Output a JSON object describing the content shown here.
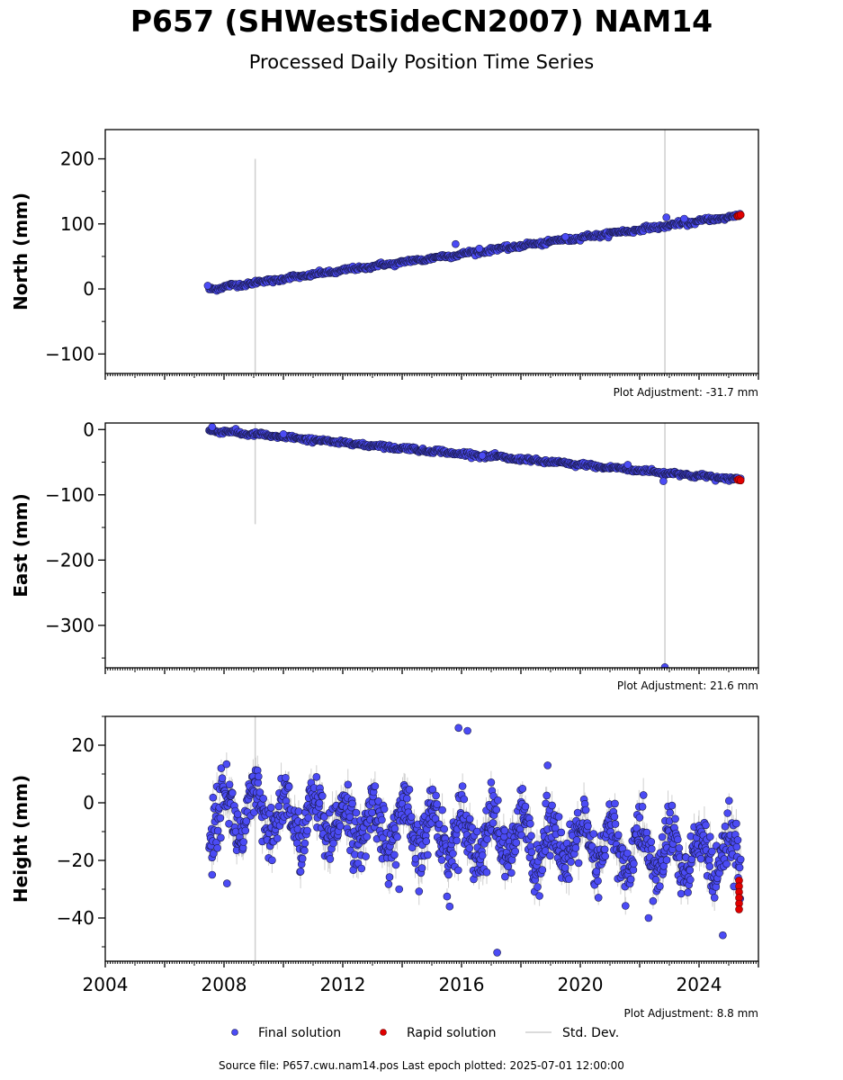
{
  "title": "P657 (SHWestSideCN2007) NAM14",
  "subtitle": "Processed Daily Position Time Series",
  "footer": "Source file: P657.cwu.nam14.pos  Last epoch plotted: 2025-07-01 12:00:00",
  "legend": {
    "final_label": "Final solution",
    "rapid_label": "Rapid solution",
    "std_label": "Std. Dev."
  },
  "colors": {
    "final": "#4b4bf5",
    "rapid": "#e00000",
    "std": "#b0b0b0",
    "edge": "#1a1a4a"
  },
  "chart_data": [
    {
      "type": "scatter",
      "ylabel": "North (mm)",
      "adjustment": "Plot Adjustment: -31.7 mm",
      "xlim": [
        2004,
        2026
      ],
      "ylim": [
        -130,
        245
      ],
      "yticks": [
        200,
        100,
        0,
        -100
      ],
      "ytick_labels": [
        "200",
        "100",
        "0",
        "−100"
      ],
      "trend": {
        "start": [
          2007.5,
          0
        ],
        "end": [
          2025.4,
          113
        ]
      },
      "scatter_sd": 1.6,
      "outliers": [
        [
          2007.45,
          5
        ],
        [
          2015.8,
          69
        ],
        [
          2016.6,
          62
        ],
        [
          2019.5,
          80
        ],
        [
          2022.9,
          110
        ],
        [
          2023.5,
          108
        ]
      ],
      "rapid": [
        [
          2025.3,
          112
        ],
        [
          2025.35,
          113
        ],
        [
          2025.4,
          114
        ]
      ],
      "vlines": [
        [
          2009.05,
          -130,
          200
        ],
        [
          2022.85,
          -130,
          245
        ]
      ]
    },
    {
      "type": "scatter",
      "ylabel": "East (mm)",
      "adjustment": "Plot Adjustment: 21.6 mm",
      "xlim": [
        2004,
        2026
      ],
      "ylim": [
        -365,
        10
      ],
      "yticks": [
        0,
        -100,
        -200,
        -300
      ],
      "ytick_labels": [
        "0",
        "−100",
        "−200",
        "−300"
      ],
      "trend": {
        "start": [
          2007.5,
          -1
        ],
        "end": [
          2025.4,
          -77
        ]
      },
      "scatter_sd": 1.6,
      "outliers": [
        [
          2007.6,
          4
        ],
        [
          2010.0,
          -7
        ],
        [
          2016.7,
          -40
        ],
        [
          2021.6,
          -54
        ],
        [
          2022.8,
          -79
        ],
        [
          2022.85,
          -364
        ]
      ],
      "rapid": [
        [
          2025.3,
          -77
        ],
        [
          2025.35,
          -76
        ],
        [
          2025.4,
          -78
        ]
      ],
      "vlines": [
        [
          2009.05,
          -145,
          10
        ],
        [
          2022.85,
          -365,
          10
        ]
      ]
    },
    {
      "type": "scatter",
      "ylabel": "Height (mm)",
      "adjustment": "Plot Adjustment: 8.8 mm",
      "xlim": [
        2004,
        2026
      ],
      "ylim": [
        -55,
        30
      ],
      "yticks": [
        20,
        0,
        -20,
        -40
      ],
      "ytick_labels": [
        "20",
        "0",
        "−20",
        "−40"
      ],
      "xticks": [
        2004,
        2008,
        2012,
        2016,
        2020,
        2024
      ],
      "xtick_labels": [
        "2004",
        "2008",
        "2012",
        "2016",
        "2020",
        "2024"
      ],
      "seasonal": {
        "start": 2007.5,
        "end": 2025.4,
        "mean_start": -3,
        "mean_end": -20,
        "amplitude": 8,
        "scatter_sd": 5
      },
      "outliers": [
        [
          2007.6,
          -25
        ],
        [
          2008.1,
          -28
        ],
        [
          2013.9,
          -30
        ],
        [
          2015.6,
          -36
        ],
        [
          2015.9,
          26
        ],
        [
          2016.2,
          25
        ],
        [
          2017.2,
          -52
        ],
        [
          2018.9,
          13
        ],
        [
          2022.3,
          -40
        ],
        [
          2024.8,
          -46
        ]
      ],
      "rapid": [
        [
          2025.35,
          -27
        ],
        [
          2025.35,
          -29
        ],
        [
          2025.35,
          -31
        ],
        [
          2025.35,
          -33
        ],
        [
          2025.35,
          -35
        ],
        [
          2025.35,
          -37
        ]
      ],
      "vlines": [
        [
          2009.05,
          -55,
          30
        ]
      ]
    }
  ]
}
